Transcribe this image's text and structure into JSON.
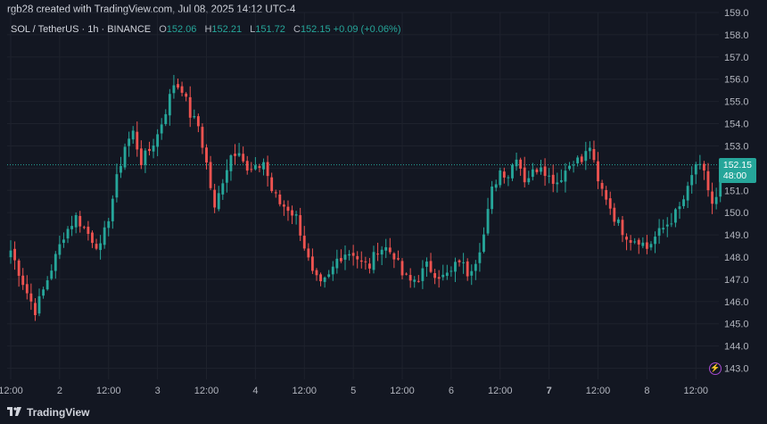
{
  "header": {
    "credit": "rgb28 created with TradingView.com, Jul 08, 2025 14:12 UTC-4"
  },
  "legend": {
    "symbol": "SOL / TetherUS · 1h · BINANCE",
    "o_label": "O",
    "o_value": "152.06",
    "h_label": "H",
    "h_value": "152.21",
    "l_label": "L",
    "l_value": "151.72",
    "c_label": "C",
    "c_value": "152.15",
    "change": "+0.09 (+0.06%)"
  },
  "price_badge": {
    "price": "152.15",
    "countdown": "48:00"
  },
  "footer": {
    "brand": "TradingView"
  },
  "colors": {
    "up": "#26a69a",
    "down": "#ef5350",
    "background": "#131722",
    "grid": "#1e222d",
    "axis_text": "#b2b5be",
    "last_price_line": "#26a69a"
  },
  "chart_data": {
    "type": "candlestick",
    "symbol": "SOL / TetherUS",
    "interval": "1h",
    "exchange": "BINANCE",
    "ylim": [
      142.5,
      159.0
    ],
    "yticks": [
      143.0,
      144.0,
      145.0,
      146.0,
      147.0,
      148.0,
      149.0,
      150.0,
      151.0,
      152.0,
      153.0,
      154.0,
      155.0,
      156.0,
      157.0,
      158.0,
      159.0
    ],
    "xtick_labels": [
      {
        "label": "12:00",
        "index": 0,
        "bold": false
      },
      {
        "label": "2",
        "index": 12,
        "bold": false
      },
      {
        "label": "12:00",
        "index": 24,
        "bold": false
      },
      {
        "label": "3",
        "index": 36,
        "bold": false
      },
      {
        "label": "12:00",
        "index": 48,
        "bold": false
      },
      {
        "label": "4",
        "index": 60,
        "bold": false
      },
      {
        "label": "12:00",
        "index": 72,
        "bold": false
      },
      {
        "label": "5",
        "index": 84,
        "bold": false
      },
      {
        "label": "12:00",
        "index": 96,
        "bold": false
      },
      {
        "label": "6",
        "index": 108,
        "bold": false
      },
      {
        "label": "12:00",
        "index": 120,
        "bold": false
      },
      {
        "label": "7",
        "index": 132,
        "bold": true
      },
      {
        "label": "12:00",
        "index": 144,
        "bold": false
      },
      {
        "label": "8",
        "index": 156,
        "bold": false
      },
      {
        "label": "12:00",
        "index": 168,
        "bold": false
      }
    ],
    "last_price": 152.15,
    "grid": true,
    "close_path": [
      [
        0,
        148.3
      ],
      [
        4,
        146.4
      ],
      [
        6,
        145.6
      ],
      [
        8,
        146.5
      ],
      [
        10,
        147.5
      ],
      [
        13,
        149.0
      ],
      [
        16,
        149.8
      ],
      [
        20,
        148.8
      ],
      [
        22,
        148.4
      ],
      [
        24,
        149.8
      ],
      [
        26,
        151.5
      ],
      [
        28,
        153.0
      ],
      [
        30,
        153.6
      ],
      [
        32,
        152.3
      ],
      [
        34,
        152.8
      ],
      [
        36,
        153.5
      ],
      [
        38,
        154.6
      ],
      [
        40,
        155.8
      ],
      [
        42,
        155.6
      ],
      [
        44,
        154.4
      ],
      [
        46,
        153.9
      ],
      [
        48,
        152.2
      ],
      [
        50,
        150.1
      ],
      [
        52,
        151.5
      ],
      [
        54,
        152.6
      ],
      [
        56,
        152.9
      ],
      [
        58,
        151.8
      ],
      [
        60,
        151.9
      ],
      [
        62,
        152.3
      ],
      [
        64,
        151.0
      ],
      [
        66,
        150.4
      ],
      [
        68,
        150.2
      ],
      [
        70,
        149.8
      ],
      [
        72,
        148.5
      ],
      [
        74,
        147.2
      ],
      [
        76,
        146.7
      ],
      [
        78,
        147.1
      ],
      [
        80,
        147.9
      ],
      [
        82,
        148.2
      ],
      [
        84,
        148.2
      ],
      [
        86,
        147.7
      ],
      [
        88,
        147.6
      ],
      [
        90,
        148.4
      ],
      [
        92,
        148.4
      ],
      [
        94,
        148.1
      ],
      [
        96,
        147.2
      ],
      [
        98,
        146.9
      ],
      [
        100,
        147.1
      ],
      [
        102,
        147.6
      ],
      [
        104,
        147.3
      ],
      [
        106,
        147.1
      ],
      [
        108,
        147.3
      ],
      [
        110,
        147.9
      ],
      [
        112,
        147.3
      ],
      [
        114,
        147.9
      ],
      [
        116,
        149.0
      ],
      [
        118,
        151.0
      ],
      [
        120,
        151.9
      ],
      [
        122,
        151.7
      ],
      [
        124,
        152.6
      ],
      [
        126,
        151.5
      ],
      [
        128,
        151.8
      ],
      [
        130,
        152.2
      ],
      [
        132,
        151.6
      ],
      [
        134,
        151.4
      ],
      [
        136,
        151.9
      ],
      [
        138,
        152.4
      ],
      [
        140,
        152.3
      ],
      [
        142,
        153.0
      ],
      [
        144,
        151.3
      ],
      [
        146,
        150.7
      ],
      [
        148,
        149.8
      ],
      [
        150,
        149.2
      ],
      [
        152,
        148.8
      ],
      [
        154,
        148.8
      ],
      [
        156,
        148.4
      ],
      [
        158,
        148.9
      ],
      [
        160,
        149.3
      ],
      [
        162,
        149.7
      ],
      [
        164,
        150.2
      ],
      [
        166,
        151.0
      ],
      [
        168,
        152.2
      ],
      [
        170,
        151.7
      ],
      [
        172,
        150.4
      ],
      [
        173,
        150.6
      ],
      [
        174,
        152.15
      ]
    ],
    "candle_count": 175,
    "seed": 7
  }
}
